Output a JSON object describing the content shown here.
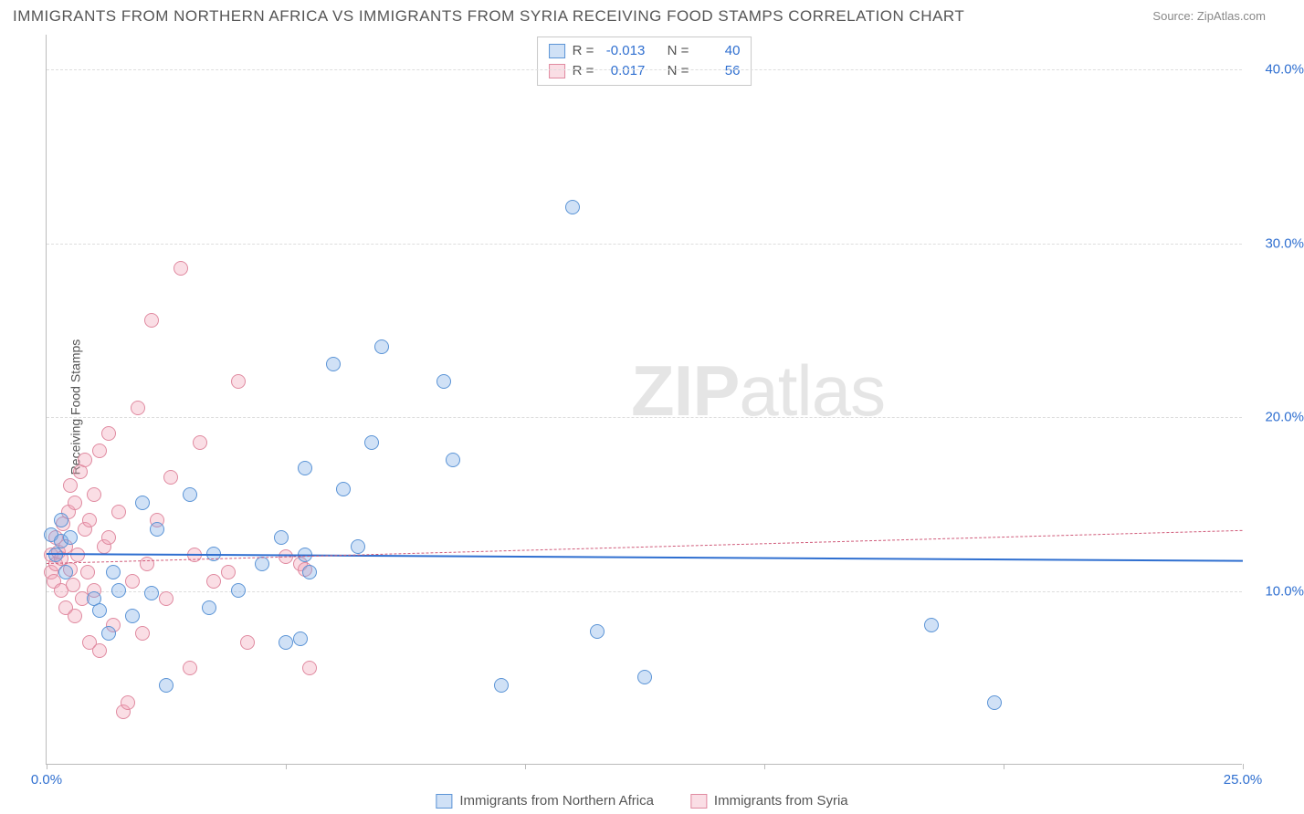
{
  "title": "IMMIGRANTS FROM NORTHERN AFRICA VS IMMIGRANTS FROM SYRIA RECEIVING FOOD STAMPS CORRELATION CHART",
  "source_label": "Source:",
  "source_name": "ZipAtlas.com",
  "y_axis_label": "Receiving Food Stamps",
  "watermark_bold": "ZIP",
  "watermark_rest": "atlas",
  "chart": {
    "type": "scatter",
    "xlim": [
      0,
      25
    ],
    "ylim": [
      0,
      42
    ],
    "x_ticks": [
      0,
      5,
      10,
      15,
      20,
      25
    ],
    "x_tick_labels": [
      "0.0%",
      "",
      "",
      "",
      "",
      "25.0%"
    ],
    "y_ticks": [
      10,
      20,
      30,
      40
    ],
    "y_tick_labels": [
      "10.0%",
      "20.0%",
      "30.0%",
      "40.0%"
    ],
    "grid_color": "#dddddd",
    "background_color": "#ffffff",
    "axis_color": "#bbbbbb",
    "tick_label_color": "#2f6fd0",
    "marker_radius": 8,
    "marker_border_width": 1.2,
    "series": [
      {
        "name": "Immigrants from Northern Africa",
        "fill": "rgba(120,170,230,0.35)",
        "stroke": "#5b94d6",
        "regression": {
          "y_start": 12.2,
          "y_end": 11.8,
          "color": "#2f6fd0",
          "width": 2,
          "dashed": false
        },
        "stats": {
          "R": "-0.013",
          "N": "40"
        },
        "points": [
          [
            0.1,
            13.2
          ],
          [
            0.2,
            12.0
          ],
          [
            0.3,
            14.0
          ],
          [
            0.3,
            12.8
          ],
          [
            0.5,
            13.0
          ],
          [
            1.0,
            9.5
          ],
          [
            1.1,
            8.8
          ],
          [
            1.3,
            7.5
          ],
          [
            1.4,
            11.0
          ],
          [
            1.5,
            10.0
          ],
          [
            1.8,
            8.5
          ],
          [
            2.0,
            15.0
          ],
          [
            2.2,
            9.8
          ],
          [
            2.3,
            13.5
          ],
          [
            2.5,
            4.5
          ],
          [
            3.0,
            15.5
          ],
          [
            3.4,
            9.0
          ],
          [
            3.5,
            12.1
          ],
          [
            4.0,
            10.0
          ],
          [
            4.5,
            11.5
          ],
          [
            4.9,
            13.0
          ],
          [
            5.0,
            7.0
          ],
          [
            5.3,
            7.2
          ],
          [
            5.4,
            17.0
          ],
          [
            5.5,
            11.0
          ],
          [
            6.0,
            23.0
          ],
          [
            6.2,
            15.8
          ],
          [
            6.5,
            12.5
          ],
          [
            6.8,
            18.5
          ],
          [
            7.0,
            24.0
          ],
          [
            8.3,
            22.0
          ],
          [
            8.5,
            17.5
          ],
          [
            9.5,
            4.5
          ],
          [
            11.0,
            32.0
          ],
          [
            11.5,
            7.6
          ],
          [
            12.5,
            5.0
          ],
          [
            18.5,
            8.0
          ],
          [
            19.8,
            3.5
          ],
          [
            5.4,
            12.0
          ],
          [
            0.4,
            11.0
          ]
        ]
      },
      {
        "name": "Immigrants from Syria",
        "fill": "rgba(240,160,180,0.35)",
        "stroke": "#e08aa0",
        "regression": {
          "y_start": 11.6,
          "y_end": 13.5,
          "color": "#d05b7a",
          "width": 1.2,
          "dashed": true
        },
        "stats": {
          "R": "0.017",
          "N": "56"
        },
        "points": [
          [
            0.1,
            11.0
          ],
          [
            0.1,
            12.0
          ],
          [
            0.15,
            10.5
          ],
          [
            0.2,
            11.5
          ],
          [
            0.2,
            13.0
          ],
          [
            0.25,
            12.2
          ],
          [
            0.3,
            10.0
          ],
          [
            0.3,
            11.8
          ],
          [
            0.35,
            13.8
          ],
          [
            0.4,
            12.5
          ],
          [
            0.4,
            9.0
          ],
          [
            0.45,
            14.5
          ],
          [
            0.5,
            11.2
          ],
          [
            0.5,
            16.0
          ],
          [
            0.55,
            10.3
          ],
          [
            0.6,
            15.0
          ],
          [
            0.6,
            8.5
          ],
          [
            0.65,
            12.0
          ],
          [
            0.7,
            16.8
          ],
          [
            0.75,
            9.5
          ],
          [
            0.8,
            13.5
          ],
          [
            0.8,
            17.5
          ],
          [
            0.85,
            11.0
          ],
          [
            0.9,
            14.0
          ],
          [
            0.9,
            7.0
          ],
          [
            1.0,
            15.5
          ],
          [
            1.0,
            10.0
          ],
          [
            1.1,
            18.0
          ],
          [
            1.1,
            6.5
          ],
          [
            1.2,
            12.5
          ],
          [
            1.3,
            19.0
          ],
          [
            1.4,
            8.0
          ],
          [
            1.5,
            14.5
          ],
          [
            1.6,
            3.0
          ],
          [
            1.7,
            3.5
          ],
          [
            1.8,
            10.5
          ],
          [
            1.9,
            20.5
          ],
          [
            2.0,
            7.5
          ],
          [
            2.1,
            11.5
          ],
          [
            2.2,
            25.5
          ],
          [
            2.3,
            14.0
          ],
          [
            2.5,
            9.5
          ],
          [
            2.8,
            28.5
          ],
          [
            3.0,
            5.5
          ],
          [
            3.1,
            12.0
          ],
          [
            3.2,
            18.5
          ],
          [
            3.5,
            10.5
          ],
          [
            3.8,
            11.0
          ],
          [
            4.0,
            22.0
          ],
          [
            4.2,
            7.0
          ],
          [
            5.0,
            11.9
          ],
          [
            5.3,
            11.5
          ],
          [
            5.4,
            11.2
          ],
          [
            5.5,
            5.5
          ],
          [
            2.6,
            16.5
          ],
          [
            1.3,
            13.0
          ]
        ]
      }
    ]
  },
  "stats_box": {
    "R_label": "R =",
    "N_label": "N ="
  },
  "legend": {
    "series1": "Immigrants from Northern Africa",
    "series2": "Immigrants from Syria"
  }
}
